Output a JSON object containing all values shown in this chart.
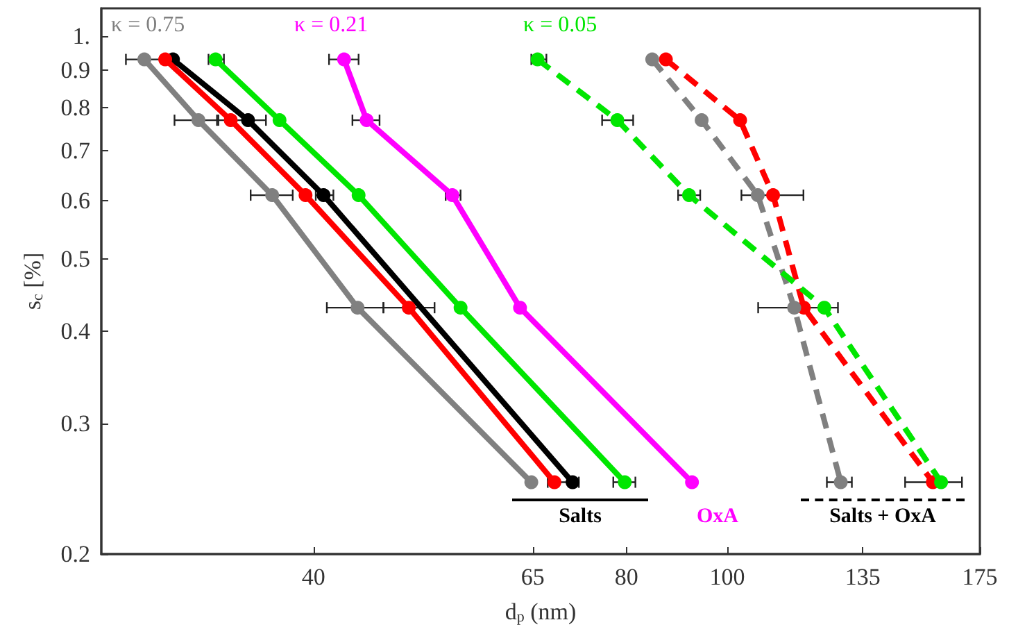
{
  "chart_data": {
    "type": "line",
    "xlabel": "d$_{p}$ (nm)",
    "ylabel": "s$_{c}$ [%]",
    "log": "xy",
    "grid": false,
    "marker": "circle",
    "xlim": [
      25,
      175
    ],
    "xticks": [
      40,
      65,
      80,
      100,
      135,
      175
    ],
    "ylim": [
      0.2,
      1.09
    ],
    "yticks": [
      0.2,
      0.3,
      0.4,
      0.5,
      0.6,
      0.7,
      0.8,
      0.9,
      {
        "value": 1,
        "label": "1."
      }
    ],
    "series": [
      {
        "color": "#808080",
        "line_style": "solid",
        "x": [
          27.5,
          31.0,
          36.5,
          44.1,
          64.8
        ],
        "values": [
          0.93,
          0.77,
          0.61,
          0.43,
          0.25
        ],
        "xerrors": [
          [
            26.4,
            28.7
          ],
          [
            29.4,
            32.4
          ],
          [
            34.8,
            38.2
          ],
          [
            41.2,
            46.7
          ],
          null
        ]
      },
      {
        "color": "#ff0000",
        "line_style": "solid",
        "x": [
          28.8,
          33.3,
          39.3,
          49.4,
          68.2
        ],
        "values": [
          0.93,
          0.77,
          0.61,
          0.43,
          0.25
        ],
        "xerrors": [
          null,
          null,
          null,
          [
            46.7,
            52.3
          ],
          null
        ]
      },
      {
        "color": "#000000",
        "line_style": "solid",
        "x": [
          29.3,
          34.6,
          40.9,
          49.4,
          71.0
        ],
        "values": [
          0.93,
          0.77,
          0.61,
          null,
          0.25
        ],
        "xerrors": [
          null,
          [
            32.3,
            36.0
          ],
          [
            40.2,
            41.8
          ],
          null,
          [
            67.2,
            72.0
          ]
        ]
      },
      {
        "color": "#00e600",
        "line_style": "solid",
        "x": [
          32.2,
          37.1,
          44.2,
          55.4,
          79.7
        ],
        "values": [
          0.93,
          0.77,
          0.61,
          0.43,
          0.25
        ],
        "xerrors": [
          [
            31.7,
            32.8
          ],
          null,
          null,
          null,
          [
            77.7,
            81.6
          ]
        ]
      },
      {
        "color": "#ff00ff",
        "line_style": "solid",
        "x": [
          42.8,
          45.0,
          54.4,
          63.2,
          92.5
        ],
        "values": [
          0.93,
          0.77,
          0.61,
          0.43,
          0.25
        ],
        "xerrors": [
          [
            41.4,
            44.2
          ],
          [
            43.6,
            46.3
          ],
          [
            53.6,
            55.4
          ],
          null,
          null
        ]
      },
      {
        "color": "#00e600",
        "line_style": "dashed",
        "x": [
          65.7,
          78.4,
          91.9,
          124,
          160.6
        ],
        "values": [
          0.93,
          0.77,
          0.61,
          0.43,
          0.25
        ],
        "xerrors": [
          [
            64.8,
            67.0
          ],
          [
            75.8,
            81.2
          ],
          [
            89.7,
            94.2
          ],
          null,
          null
        ]
      },
      {
        "color": "#808080",
        "line_style": "dashed",
        "x": [
          84.7,
          94.5,
          107,
          116,
          128.6
        ],
        "values": [
          0.93,
          0.77,
          0.61,
          0.43,
          0.25
        ],
        "xerrors": [
          null,
          null,
          null,
          [
            107.1,
            127.8
          ],
          [
            124.7,
            131.8
          ]
        ]
      },
      {
        "color": "#ff0000",
        "line_style": "dashed",
        "x": [
          87.3,
          102.9,
          110.7,
          118.5,
          157.7
        ],
        "values": [
          0.93,
          0.77,
          0.61,
          0.43,
          0.25
        ],
        "xerrors": [
          null,
          null,
          [
            103.2,
            118.4
          ],
          null,
          [
            148.3,
            168.2
          ]
        ]
      }
    ],
    "annotations": [
      "κ = 0.75",
      "κ = 0.21",
      "κ = 0.05",
      "Salts",
      "OxA",
      "Salts + OxA"
    ]
  }
}
